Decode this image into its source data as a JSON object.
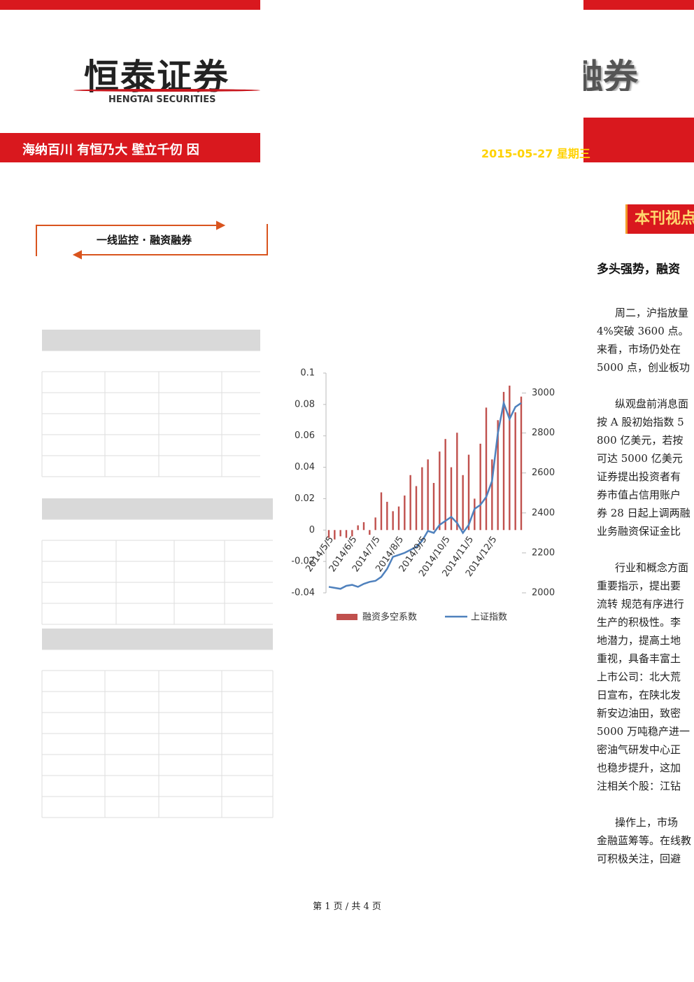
{
  "header": {
    "logo": "恒泰证券",
    "logo_en": "HENGTAI SECURITIES",
    "slogan": "海纳百川 有恒乃大  壁立千仞 因",
    "brand": "融券",
    "date": "2015-05-27 星期三"
  },
  "section_title": "一线监控 · 融资融券",
  "sidebar": {
    "tag": "本刊视点",
    "headline": "多头强势，融资",
    "paragraphs": [
      [
        "周二，沪指放量",
        "4%突破 3600 点。",
        "来看，市场仍处在",
        "5000 点，创业板功"
      ],
      [
        "纵观盘前消息面",
        "按 A 股初始指数 5",
        "800 亿美元，若按",
        "可达 5000 亿美元",
        "证券提出投资者有",
        "券市值占信用账户",
        "券 28 日起上调两融",
        "业务融资保证金比"
      ],
      [
        "行业和概念方面",
        "重要指示，提出要",
        "流转 规范有序进行",
        "生产的积极性。李",
        "地潜力，提高土地",
        "重视，具备丰富土",
        "上市公司：北大荒",
        "日宣布，在陕北发",
        "新安边油田，致密",
        "5000 万吨稳产进一",
        "密油气研发中心正",
        "也稳步提升，这加",
        "注相关个股：江钻"
      ],
      [
        "操作上，市场",
        "金融蓝筹等。在线教",
        "可积极关注，回避"
      ]
    ]
  },
  "chart_data": {
    "type": "bar-line",
    "categories": [
      "2014/5/5",
      null,
      null,
      null,
      "2014/6/5",
      null,
      null,
      null,
      "2014/7/5",
      null,
      null,
      null,
      "2014/8/5",
      null,
      null,
      null,
      "2014/9/5",
      null,
      null,
      null,
      "2014/10/5",
      null,
      null,
      null,
      "2014/11/5",
      null,
      null,
      null,
      "2014/12/5",
      null,
      null,
      null,
      null,
      null
    ],
    "series": [
      {
        "name": "融资多空系数",
        "type": "bar",
        "color": "#c0504d",
        "values": [
          -0.005,
          -0.006,
          -0.004,
          -0.005,
          -0.004,
          0.003,
          0.005,
          -0.003,
          0.008,
          0.024,
          0.018,
          0.012,
          0.015,
          0.022,
          0.035,
          0.028,
          0.04,
          0.045,
          0.03,
          0.05,
          0.058,
          0.04,
          0.062,
          0.035,
          0.048,
          0.02,
          0.055,
          0.078,
          0.045,
          0.07,
          0.088,
          0.092,
          0.075,
          0.085
        ]
      },
      {
        "name": "上证指数",
        "type": "line",
        "axis": "y2",
        "color": "#4f81bd",
        "values": [
          2030,
          2025,
          2020,
          2035,
          2040,
          2030,
          2045,
          2055,
          2060,
          2080,
          2120,
          2180,
          2190,
          2200,
          2215,
          2230,
          2260,
          2310,
          2300,
          2340,
          2360,
          2380,
          2350,
          2300,
          2340,
          2420,
          2440,
          2480,
          2560,
          2800,
          2950,
          2870,
          2930,
          2950
        ]
      }
    ],
    "ylim": [
      -0.04,
      0.1
    ],
    "yticks": [
      -0.04,
      -0.02,
      0,
      0.02,
      0.04,
      0.06,
      0.08,
      0.1
    ],
    "y2lim": [
      2000,
      3100
    ],
    "y2ticks": [
      2000,
      2200,
      2400,
      2600,
      2800,
      3000
    ]
  },
  "footer": "第 1 页 / 共 4 页"
}
